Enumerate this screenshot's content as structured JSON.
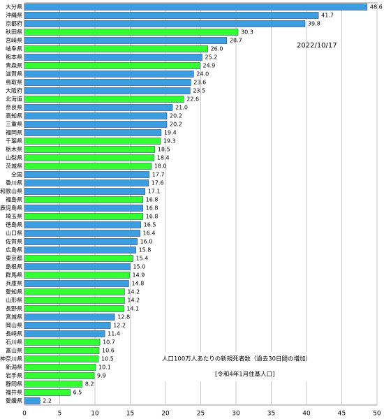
{
  "chart_data": {
    "type": "bar",
    "orientation": "horizontal",
    "categories": [
      "大分県",
      "沖縄県",
      "京都府",
      "秋田県",
      "宮崎県",
      "岐阜県",
      "熊本県",
      "青森県",
      "滋賀県",
      "鳥取県",
      "大阪府",
      "北海道",
      "奈良県",
      "高知県",
      "三重県",
      "福岡県",
      "千葉県",
      "栃木県",
      "山梨県",
      "茨城県",
      "全国",
      "香川県",
      "和歌山県",
      "福島県",
      "鹿児島県",
      "埼玉県",
      "徳島県",
      "山口県",
      "佐賀県",
      "広島県",
      "東京都",
      "島根県",
      "群馬県",
      "兵庫県",
      "愛知県",
      "山形県",
      "長野県",
      "宮城県",
      "岡山県",
      "長崎県",
      "石川県",
      "富山県",
      "神奈川県",
      "新潟県",
      "岩手県",
      "静岡県",
      "福井県",
      "愛媛県"
    ],
    "values": [
      48.6,
      41.7,
      39.8,
      30.3,
      28.7,
      26,
      25.2,
      24.9,
      24,
      23.6,
      23.5,
      22.6,
      21,
      20.2,
      20.2,
      19.4,
      19.3,
      18.5,
      18.4,
      18,
      17.7,
      17.6,
      17.1,
      16.8,
      16.8,
      16.8,
      16.5,
      16.4,
      16,
      15.8,
      15.4,
      15,
      14.9,
      14.8,
      14.2,
      14.2,
      14.1,
      12.8,
      12.2,
      11.4,
      10.7,
      10.6,
      10.5,
      10.1,
      9.9,
      8.2,
      6.5,
      2.2
    ],
    "value_labels": [
      "48.6",
      "41.7",
      "39.8",
      "30.3",
      "28.7",
      "26.0",
      "25.2",
      "24.9",
      "24.0",
      "23.6",
      "23.5",
      "22.6",
      "21.0",
      "20.2",
      "20.2",
      "19.4",
      "19.3",
      "18.5",
      "18.4",
      "18.0",
      "17.7",
      "17.6",
      "17.1",
      "16.8",
      "16.8",
      "16.8",
      "16.5",
      "16.4",
      "16.0",
      "15.8",
      "15.4",
      "15.0",
      "14.9",
      "14.8",
      "14.2",
      "14.2",
      "14.1",
      "12.8",
      "12.2",
      "11.4",
      "10.7",
      "10.6",
      "10.5",
      "10.1",
      "9.9",
      "8.2",
      "6.5",
      "2.2"
    ],
    "colors": [
      "#3a9ee0",
      "#3a9ee0",
      "#3a9ee0",
      "#33ff33",
      "#3a9ee0",
      "#33ff33",
      "#3a9ee0",
      "#33ff33",
      "#3a9ee0",
      "#3a9ee0",
      "#3a9ee0",
      "#33ff33",
      "#3a9ee0",
      "#3a9ee0",
      "#3a9ee0",
      "#3a9ee0",
      "#33ff33",
      "#33ff33",
      "#33ff33",
      "#33ff33",
      "#3a9ee0",
      "#3a9ee0",
      "#3a9ee0",
      "#33ff33",
      "#3a9ee0",
      "#33ff33",
      "#3a9ee0",
      "#3a9ee0",
      "#3a9ee0",
      "#3a9ee0",
      "#33ff33",
      "#3a9ee0",
      "#33ff33",
      "#3a9ee0",
      "#33ff33",
      "#33ff33",
      "#33ff33",
      "#3a9ee0",
      "#3a9ee0",
      "#3a9ee0",
      "#33ff33",
      "#33ff33",
      "#33ff33",
      "#33ff33",
      "#33ff33",
      "#33ff33",
      "#33ff33",
      "#3a9ee0"
    ],
    "xlim": [
      0,
      50
    ],
    "xticks": [
      0,
      5,
      10,
      15,
      20,
      25,
      30,
      35,
      40,
      45,
      50
    ],
    "grid": true,
    "annotations": [
      "2022/10/17",
      "人口100万人あたりの新規死者数（過去30日間の増加）",
      "[令和4年1月住基人口]"
    ]
  }
}
